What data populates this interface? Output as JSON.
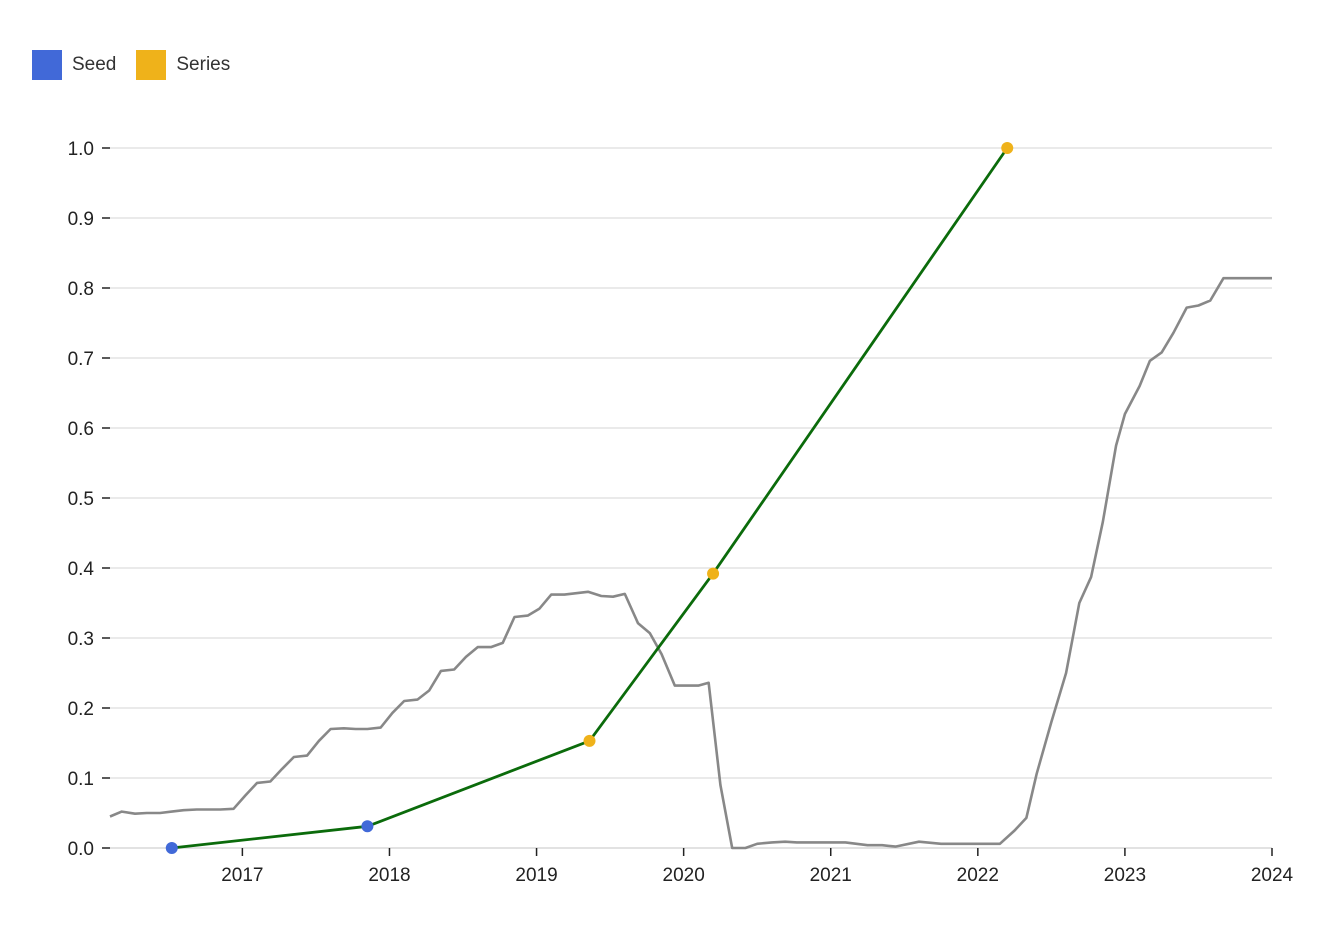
{
  "legend": [
    {
      "label": "Seed",
      "color": "#4169d8"
    },
    {
      "label": "Series",
      "color": "#efb21a"
    }
  ],
  "chart_data": {
    "type": "line",
    "title": "",
    "xlabel": "",
    "ylabel": "",
    "xlim": [
      2016.1,
      2024.0
    ],
    "ylim": [
      0,
      1.0
    ],
    "grid": true,
    "legend_position": "top-left",
    "x_ticks": [
      "2017",
      "2018",
      "2019",
      "2020",
      "2021",
      "2022",
      "2023",
      "2024"
    ],
    "y_ticks": [
      "0.0",
      "0.1",
      "0.2",
      "0.3",
      "0.4",
      "0.5",
      "0.6",
      "0.7",
      "0.8",
      "0.9",
      "1.0"
    ],
    "series": [
      {
        "color": "#888888",
        "points": [
          [
            2016.1,
            0.045
          ],
          [
            2016.18,
            0.052
          ],
          [
            2016.27,
            0.049
          ],
          [
            2016.35,
            0.05
          ],
          [
            2016.44,
            0.05
          ],
          [
            2016.52,
            0.052
          ],
          [
            2016.6,
            0.054
          ],
          [
            2016.69,
            0.055
          ],
          [
            2016.77,
            0.055
          ],
          [
            2016.85,
            0.055
          ],
          [
            2016.94,
            0.056
          ],
          [
            2017.02,
            0.075
          ],
          [
            2017.1,
            0.093
          ],
          [
            2017.19,
            0.095
          ],
          [
            2017.27,
            0.113
          ],
          [
            2017.35,
            0.13
          ],
          [
            2017.44,
            0.132
          ],
          [
            2017.52,
            0.153
          ],
          [
            2017.6,
            0.17
          ],
          [
            2017.69,
            0.171
          ],
          [
            2017.77,
            0.17
          ],
          [
            2017.85,
            0.17
          ],
          [
            2017.94,
            0.172
          ],
          [
            2018.02,
            0.193
          ],
          [
            2018.1,
            0.21
          ],
          [
            2018.19,
            0.212
          ],
          [
            2018.27,
            0.225
          ],
          [
            2018.35,
            0.253
          ],
          [
            2018.44,
            0.255
          ],
          [
            2018.52,
            0.273
          ],
          [
            2018.6,
            0.287
          ],
          [
            2018.69,
            0.287
          ],
          [
            2018.77,
            0.293
          ],
          [
            2018.85,
            0.33
          ],
          [
            2018.94,
            0.332
          ],
          [
            2019.02,
            0.342
          ],
          [
            2019.1,
            0.362
          ],
          [
            2019.19,
            0.362
          ],
          [
            2019.27,
            0.364
          ],
          [
            2019.35,
            0.366
          ],
          [
            2019.44,
            0.36
          ],
          [
            2019.52,
            0.359
          ],
          [
            2019.6,
            0.363
          ],
          [
            2019.69,
            0.321
          ],
          [
            2019.77,
            0.307
          ],
          [
            2019.85,
            0.277
          ],
          [
            2019.94,
            0.232
          ],
          [
            2020.02,
            0.232
          ],
          [
            2020.1,
            0.232
          ],
          [
            2020.17,
            0.236
          ],
          [
            2020.25,
            0.09
          ],
          [
            2020.33,
            0.0
          ],
          [
            2020.42,
            0.0
          ],
          [
            2020.5,
            0.006
          ],
          [
            2020.6,
            0.008
          ],
          [
            2020.69,
            0.009
          ],
          [
            2020.77,
            0.008
          ],
          [
            2020.85,
            0.008
          ],
          [
            2020.94,
            0.008
          ],
          [
            2021.1,
            0.008
          ],
          [
            2021.25,
            0.004
          ],
          [
            2021.35,
            0.004
          ],
          [
            2021.44,
            0.002
          ],
          [
            2021.6,
            0.009
          ],
          [
            2021.75,
            0.006
          ],
          [
            2021.9,
            0.006
          ],
          [
            2022.0,
            0.006
          ],
          [
            2022.15,
            0.006
          ],
          [
            2022.25,
            0.025
          ],
          [
            2022.33,
            0.043
          ],
          [
            2022.4,
            0.106
          ],
          [
            2022.5,
            0.18
          ],
          [
            2022.6,
            0.25
          ],
          [
            2022.69,
            0.35
          ],
          [
            2022.77,
            0.387
          ],
          [
            2022.85,
            0.466
          ],
          [
            2022.94,
            0.575
          ],
          [
            2023.0,
            0.62
          ],
          [
            2023.1,
            0.66
          ],
          [
            2023.17,
            0.696
          ],
          [
            2023.25,
            0.708
          ],
          [
            2023.33,
            0.736
          ],
          [
            2023.42,
            0.772
          ],
          [
            2023.5,
            0.775
          ],
          [
            2023.58,
            0.782
          ],
          [
            2023.67,
            0.814
          ],
          [
            2023.75,
            0.814
          ],
          [
            2023.85,
            0.814
          ],
          [
            2024.0,
            0.814
          ]
        ]
      },
      {
        "color": "#0b6b0b",
        "points": [
          [
            2016.52,
            0.0
          ],
          [
            2017.85,
            0.031
          ],
          [
            2019.36,
            0.153
          ],
          [
            2020.2,
            0.392
          ],
          [
            2022.2,
            1.0
          ]
        ],
        "markers": [
          "Seed",
          "Seed",
          "Series",
          "Series",
          "Series"
        ]
      }
    ]
  }
}
